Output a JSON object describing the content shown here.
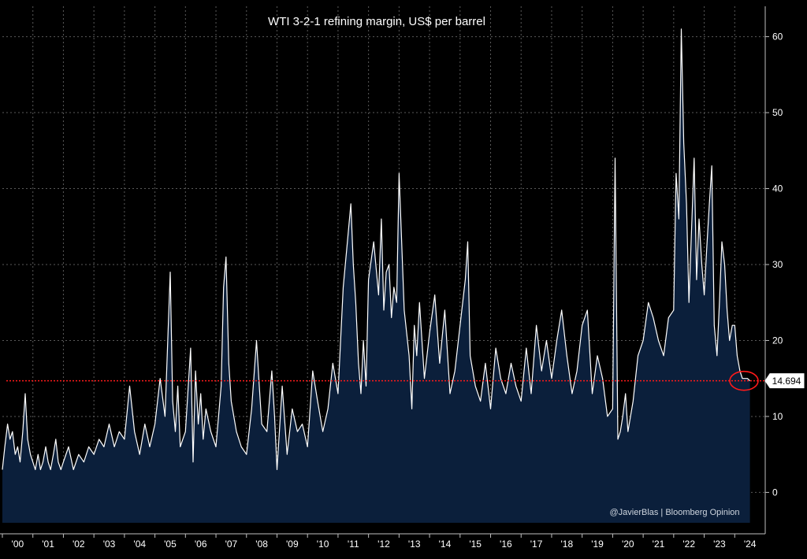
{
  "chart_data": {
    "type": "area",
    "title": "WTI 3-2-1 refining margin, US$ per barrel",
    "xlabel": "",
    "ylabel": "",
    "x_tick_labels": [
      "'00",
      "'01",
      "'02",
      "'03",
      "'04",
      "'05",
      "'06",
      "'07",
      "'08",
      "'09",
      "'10",
      "'11",
      "'12",
      "'13",
      "'14",
      "'15",
      "'16",
      "'17",
      "'18",
      "'19",
      "'20",
      "'21",
      "'22",
      "'23",
      "'24"
    ],
    "y_ticks": [
      0,
      10,
      20,
      30,
      40,
      50,
      60
    ],
    "xlim": [
      2000.0,
      2025.0
    ],
    "ylim": [
      -4,
      64
    ],
    "grid": true,
    "last_value": 14.694,
    "last_value_label": "14.694",
    "reference_line": 14.694,
    "annotation": "@JavierBlas | Bloomberg Opinion",
    "colors": {
      "background": "#000000",
      "area_fill": "#0b1f3b",
      "line": "#ffffff",
      "grid": "#5a5a5a",
      "reference_line": "#ff1a1a",
      "highlight_circle": "#ff1a1a"
    },
    "series": [
      {
        "name": "WTI 3-2-1 refining margin",
        "x": [
          2000.0,
          2000.08,
          2000.17,
          2000.25,
          2000.33,
          2000.42,
          2000.5,
          2000.58,
          2000.67,
          2000.75,
          2000.83,
          2000.92,
          2001.0,
          2001.08,
          2001.17,
          2001.25,
          2001.33,
          2001.42,
          2001.5,
          2001.58,
          2001.67,
          2001.75,
          2001.83,
          2001.92,
          2002.0,
          2002.17,
          2002.33,
          2002.5,
          2002.67,
          2002.83,
          2003.0,
          2003.17,
          2003.33,
          2003.5,
          2003.67,
          2003.83,
          2004.0,
          2004.17,
          2004.33,
          2004.5,
          2004.67,
          2004.83,
          2005.0,
          2005.17,
          2005.33,
          2005.5,
          2005.58,
          2005.67,
          2005.75,
          2005.83,
          2006.0,
          2006.17,
          2006.25,
          2006.33,
          2006.42,
          2006.5,
          2006.58,
          2006.67,
          2006.83,
          2007.0,
          2007.17,
          2007.25,
          2007.33,
          2007.42,
          2007.5,
          2007.67,
          2007.83,
          2008.0,
          2008.17,
          2008.33,
          2008.42,
          2008.5,
          2008.67,
          2008.75,
          2008.83,
          2008.92,
          2009.0,
          2009.17,
          2009.33,
          2009.5,
          2009.67,
          2009.83,
          2010.0,
          2010.17,
          2010.33,
          2010.5,
          2010.67,
          2010.83,
          2011.0,
          2011.17,
          2011.33,
          2011.42,
          2011.5,
          2011.58,
          2011.67,
          2011.75,
          2011.83,
          2011.92,
          2012.0,
          2012.17,
          2012.33,
          2012.42,
          2012.5,
          2012.58,
          2012.67,
          2012.75,
          2012.83,
          2012.92,
          2013.0,
          2013.17,
          2013.33,
          2013.42,
          2013.5,
          2013.58,
          2013.67,
          2013.83,
          2014.0,
          2014.17,
          2014.33,
          2014.5,
          2014.67,
          2014.83,
          2015.0,
          2015.17,
          2015.25,
          2015.33,
          2015.5,
          2015.67,
          2015.83,
          2016.0,
          2016.17,
          2016.33,
          2016.5,
          2016.67,
          2016.83,
          2017.0,
          2017.17,
          2017.33,
          2017.5,
          2017.67,
          2017.83,
          2018.0,
          2018.17,
          2018.33,
          2018.5,
          2018.67,
          2018.83,
          2019.0,
          2019.17,
          2019.33,
          2019.5,
          2019.67,
          2019.83,
          2020.0,
          2020.08,
          2020.17,
          2020.25,
          2020.33,
          2020.42,
          2020.5,
          2020.67,
          2020.83,
          2021.0,
          2021.17,
          2021.33,
          2021.5,
          2021.67,
          2021.83,
          2022.0,
          2022.08,
          2022.17,
          2022.25,
          2022.33,
          2022.42,
          2022.5,
          2022.58,
          2022.67,
          2022.75,
          2022.83,
          2022.92,
          2023.0,
          2023.08,
          2023.17,
          2023.25,
          2023.33,
          2023.42,
          2023.5,
          2023.58,
          2023.67,
          2023.75,
          2023.83,
          2023.92,
          2024.0,
          2024.08,
          2024.17,
          2024.25,
          2024.33,
          2024.42,
          2024.5
        ],
        "values": [
          3,
          6,
          9,
          7,
          8,
          5,
          6,
          4,
          8,
          13,
          7,
          5,
          4,
          3,
          5,
          3,
          4,
          6,
          4,
          3,
          5,
          7,
          4,
          3,
          4,
          6,
          3,
          5,
          4,
          6,
          5,
          7,
          6,
          9,
          6,
          8,
          7,
          14,
          8,
          5,
          9,
          6,
          9,
          15,
          10,
          29,
          12,
          8,
          14,
          6,
          8,
          19,
          4,
          16,
          9,
          13,
          7,
          11,
          8,
          6,
          14,
          27,
          31,
          17,
          12,
          8,
          6,
          5,
          11,
          20,
          14,
          9,
          8,
          12,
          16,
          10,
          3,
          14,
          5,
          11,
          8,
          9,
          6,
          16,
          12,
          8,
          11,
          17,
          13,
          27,
          34,
          38,
          30,
          25,
          17,
          13,
          20,
          14,
          28,
          33,
          26,
          36,
          24,
          29,
          30,
          23,
          27,
          25,
          42,
          24,
          18,
          11,
          22,
          18,
          25,
          15,
          21,
          26,
          17,
          24,
          13,
          16,
          22,
          28,
          33,
          18,
          14,
          12,
          17,
          11,
          19,
          15,
          13,
          17,
          14,
          12,
          19,
          13,
          22,
          16,
          20,
          15,
          20,
          24,
          18,
          13,
          16,
          22,
          24,
          13,
          18,
          15,
          10,
          11,
          44,
          7,
          8,
          10,
          13,
          8,
          12,
          18,
          20,
          25,
          23,
          20,
          18,
          23,
          24,
          42,
          36,
          61,
          46,
          38,
          25,
          34,
          44,
          28,
          36,
          30,
          26,
          32,
          38,
          43,
          22,
          18,
          25,
          33,
          30,
          24,
          20,
          22,
          22,
          18,
          16,
          15,
          15,
          15,
          14.694
        ]
      }
    ]
  }
}
